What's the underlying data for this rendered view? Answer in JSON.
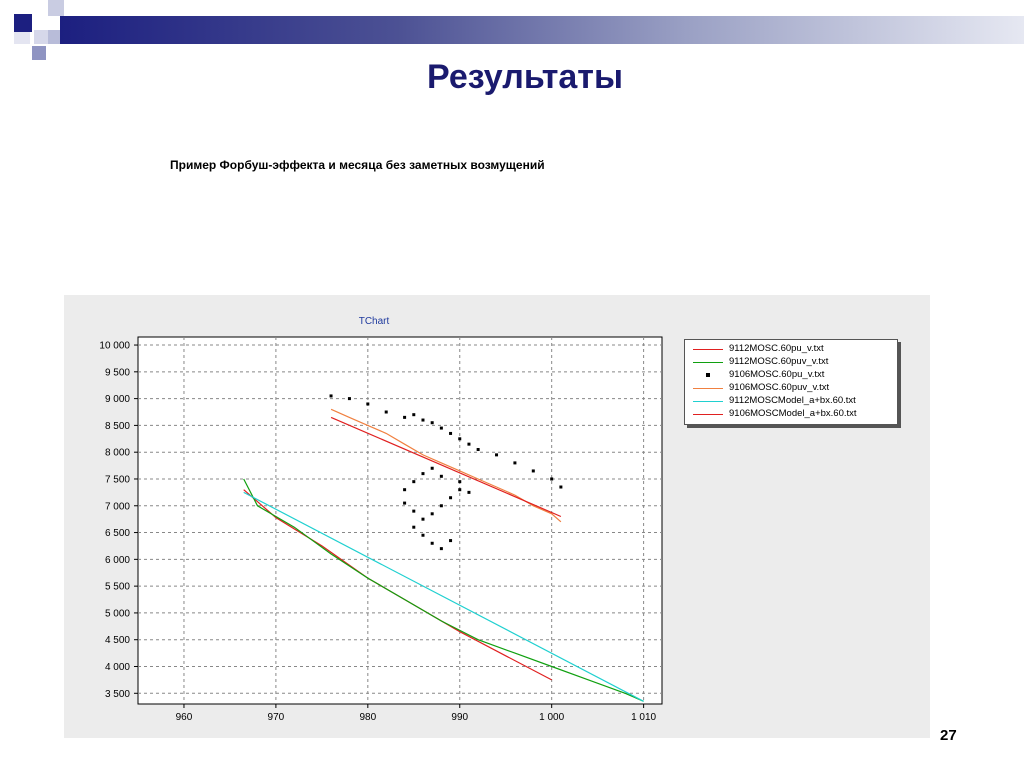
{
  "slide": {
    "title": "Результаты",
    "subtitle": "Пример Форбуш-эффекта и месяца без заметных возмущений",
    "page_number": "27"
  },
  "colors": {
    "header_navy": "#1c1f80",
    "title": "#1a1a6e",
    "chart_title": "#1f3a9e"
  },
  "chart_data": {
    "type": "line",
    "title": "TChart",
    "xlim": [
      955,
      1012
    ],
    "ylim": [
      3300,
      10150
    ],
    "x_ticks": [
      960,
      970,
      980,
      990,
      1000,
      1010
    ],
    "x_tick_labels": [
      "960",
      "970",
      "980",
      "990",
      "1 000",
      "1 010"
    ],
    "y_ticks": [
      3500,
      4000,
      4500,
      5000,
      5500,
      6000,
      6500,
      7000,
      7500,
      8000,
      8500,
      9000,
      9500,
      10000
    ],
    "y_tick_labels": [
      "3 500",
      "4 000",
      "4 500",
      "5 000",
      "5 500",
      "6 000",
      "6 500",
      "7 000",
      "7 500",
      "8 000",
      "8 500",
      "9 000",
      "9 500",
      "10 000"
    ],
    "grid": true,
    "legend_position": "top-right",
    "series": [
      {
        "name": "9112MOSC.60pu_v.txt",
        "color": "#e02020",
        "style": "line",
        "x": [
          966.5,
          970,
          975,
          980,
          985,
          990,
          995,
          1000
        ],
        "y": [
          7300,
          6780,
          6250,
          5650,
          5150,
          4650,
          4200,
          3750
        ]
      },
      {
        "name": "9112MOSC.60puv_v.txt",
        "color": "#10a010",
        "style": "line",
        "x": [
          966.5,
          968,
          972,
          976,
          980,
          984,
          988,
          992,
          996,
          1000,
          1004,
          1008,
          1010
        ],
        "y": [
          7500,
          7000,
          6600,
          6100,
          5650,
          5250,
          4850,
          4500,
          4250,
          4000,
          3750,
          3500,
          3350
        ]
      },
      {
        "name": "9106MOSC.60pu_v.txt",
        "color": "#000000",
        "style": "points",
        "x": [
          976,
          978,
          980,
          982,
          984,
          985,
          986,
          987,
          988,
          989,
          990,
          991,
          992,
          994,
          996,
          998,
          1000,
          1001,
          984,
          985,
          986,
          987,
          988,
          989,
          990,
          985,
          986,
          987,
          988,
          989,
          984,
          985,
          986,
          987,
          988,
          990,
          991
        ],
        "y": [
          9050,
          9000,
          8900,
          8750,
          8650,
          8700,
          8600,
          8550,
          8450,
          8350,
          8250,
          8150,
          8050,
          7950,
          7800,
          7650,
          7500,
          7350,
          7050,
          6900,
          6750,
          6850,
          7000,
          7150,
          7300,
          6600,
          6450,
          6300,
          6200,
          6350,
          7300,
          7450,
          7600,
          7700,
          7550,
          7450,
          7250
        ]
      },
      {
        "name": "9106MOSC.60puv_v.txt",
        "color": "#f08040",
        "style": "line",
        "x": [
          976,
          978,
          980,
          982,
          984,
          986,
          988,
          990,
          992,
          994,
          996,
          998,
          1000,
          1001
        ],
        "y": [
          8800,
          8650,
          8500,
          8350,
          8150,
          7950,
          7800,
          7650,
          7500,
          7350,
          7200,
          7000,
          6850,
          6700
        ]
      },
      {
        "name": "9112MOSCModel_a+bx.60.txt",
        "color": "#20d0d0",
        "style": "line",
        "x": [
          966.5,
          1010
        ],
        "y": [
          7250,
          3350
        ]
      },
      {
        "name": "9106MOSCModel_a+bx.60.txt",
        "color": "#e02020",
        "style": "line",
        "x": [
          976,
          1001
        ],
        "y": [
          8650,
          6800
        ]
      }
    ]
  }
}
